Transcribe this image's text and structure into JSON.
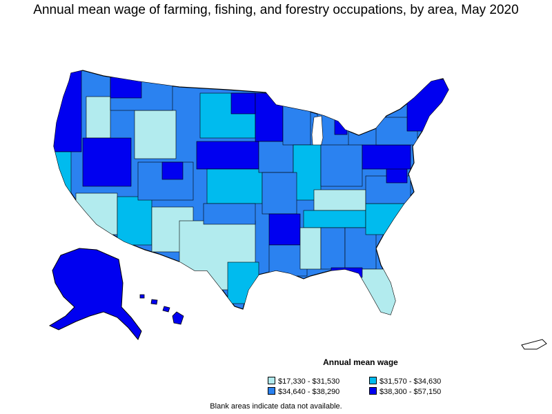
{
  "title": "Annual mean wage of farming, fishing, and forestry occupations, by area, May 2020",
  "legend": {
    "title": "Annual mean wage",
    "items": [
      {
        "label": "$17,330 - $31,530",
        "color": "#b2ebee"
      },
      {
        "label": "$31,570 - $34,630",
        "color": "#00bbee"
      },
      {
        "label": "$34,640 - $38,290",
        "color": "#2b82f0"
      },
      {
        "label": "$38,300 - $57,150",
        "color": "#0000f0"
      }
    ]
  },
  "footnote": "Blank areas indicate data not available.",
  "colors": {
    "border": "#000000",
    "blank": "#ffffff"
  }
}
